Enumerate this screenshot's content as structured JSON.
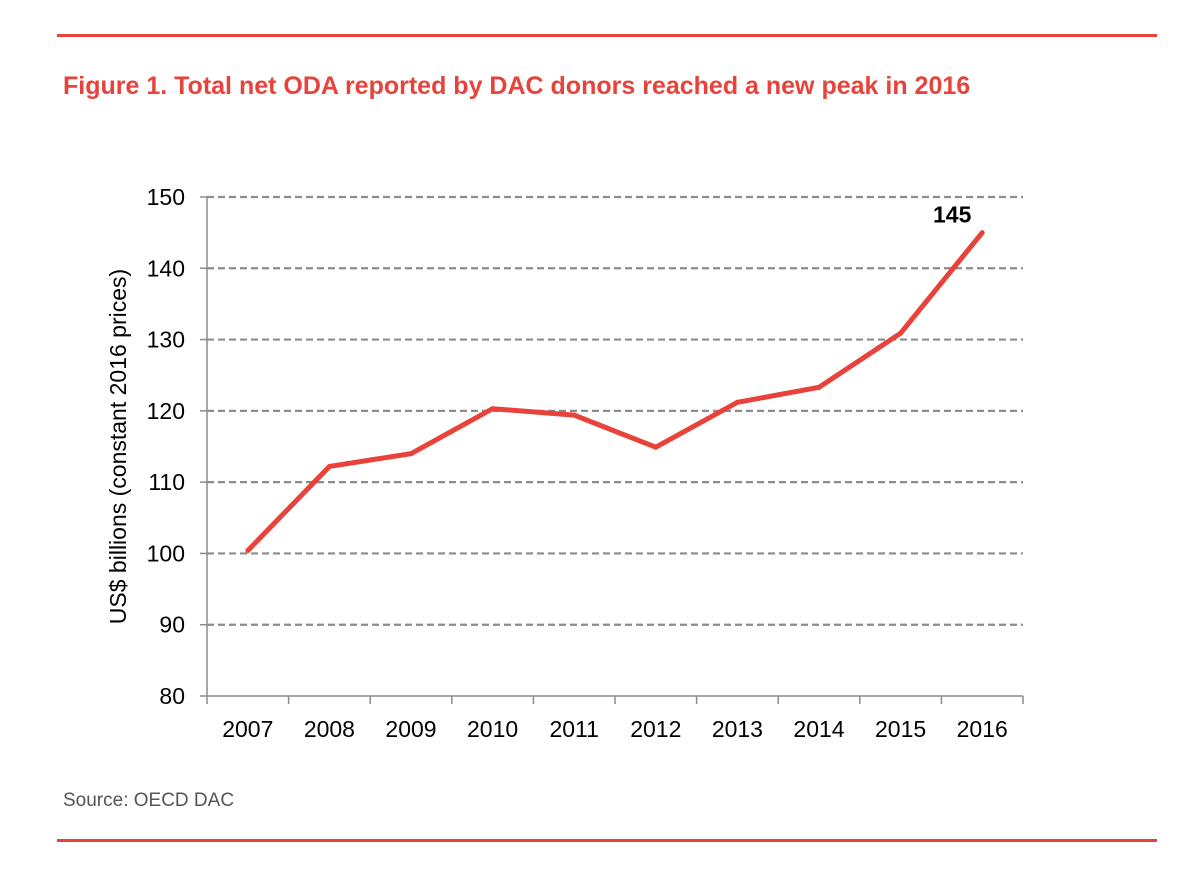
{
  "figure": {
    "title": "Figure 1. Total net ODA reported by DAC donors reached a new peak in 2016",
    "source": "Source: OECD DAC"
  },
  "colors": {
    "accent": "#e8423a",
    "line": "#e8423a",
    "grid": "#8c8c8c",
    "axis": "#8c8c8c",
    "text": "#000000"
  },
  "chart_data": {
    "type": "line",
    "title": "",
    "xlabel": "",
    "ylabel": "US$ billions (constant 2016 prices)",
    "categories": [
      "2007",
      "2008",
      "2009",
      "2010",
      "2011",
      "2012",
      "2013",
      "2014",
      "2015",
      "2016"
    ],
    "series": [
      {
        "values": [
          100.4,
          112.2,
          114.0,
          120.3,
          119.4,
          114.9,
          121.2,
          123.3,
          130.9,
          145.0
        ]
      }
    ],
    "ylim": [
      80,
      150
    ],
    "yticks": [
      80,
      90,
      100,
      110,
      120,
      130,
      140,
      150
    ],
    "grid": true,
    "gridstyle": "dashed",
    "legend": "none",
    "annotations": [
      {
        "category": "2016",
        "value": 145,
        "text": "145"
      }
    ]
  }
}
